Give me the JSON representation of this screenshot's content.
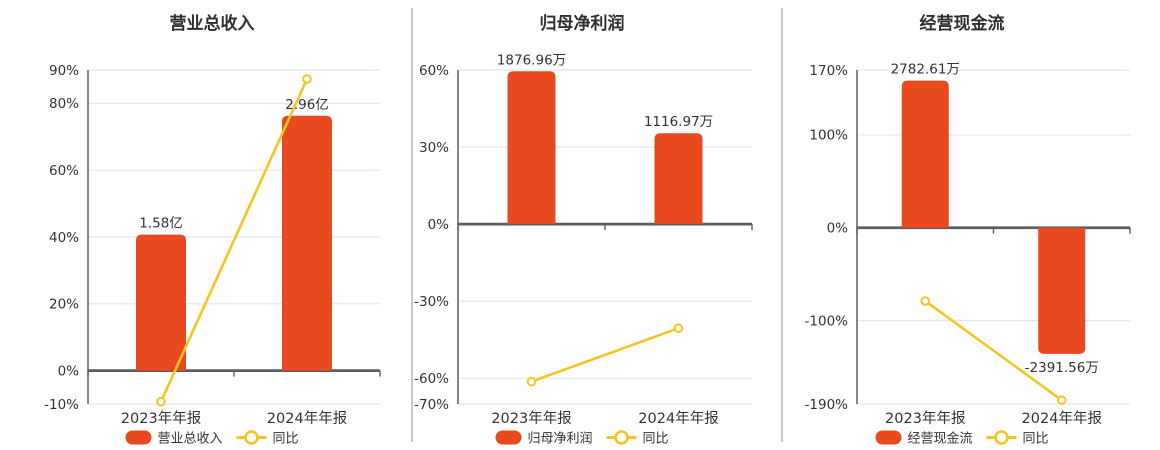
{
  "colors": {
    "bar": "#e8491f",
    "line": "#f6c51f",
    "grid": "#e2e7f1",
    "axis": "#5b5d64",
    "text": "#333333",
    "divider": "#c8c8c8",
    "background": "#ffffff"
  },
  "chart_data": [
    {
      "type": "bar+line",
      "title": "营业总收入",
      "categories": [
        "2023年年报",
        "2024年年报"
      ],
      "ylim": [
        -10,
        90
      ],
      "yticks": [
        90,
        80,
        60,
        40,
        20,
        0,
        -10
      ],
      "ytick_suffix": "%",
      "grid": true,
      "legend_position": "bottom",
      "series": [
        {
          "name": "营业总收入",
          "type": "bar",
          "labels": [
            "1.58亿",
            "2.96亿"
          ],
          "axis_values": [
            40.7,
            76.3
          ]
        },
        {
          "name": "同比",
          "type": "line",
          "axis_values": [
            -9.3,
            87.3
          ]
        }
      ]
    },
    {
      "type": "bar+line",
      "title": "归母净利润",
      "categories": [
        "2023年年报",
        "2024年年报"
      ],
      "ylim": [
        -70,
        60
      ],
      "yticks": [
        60,
        30,
        0,
        -30,
        -60,
        -70
      ],
      "ytick_suffix": "%",
      "grid": true,
      "legend_position": "bottom",
      "series": [
        {
          "name": "归母净利润",
          "type": "bar",
          "labels": [
            "1876.96万",
            "1116.97万"
          ],
          "axis_values": [
            59.5,
            35.4
          ]
        },
        {
          "name": "同比",
          "type": "line",
          "axis_values": [
            -61.3,
            -40.5
          ]
        }
      ]
    },
    {
      "type": "bar+line",
      "title": "经营现金流",
      "categories": [
        "2023年年报",
        "2024年年报"
      ],
      "ylim": [
        -190,
        170
      ],
      "yticks": [
        170,
        100,
        0,
        -100,
        -190
      ],
      "ytick_suffix": "%",
      "grid": true,
      "legend_position": "bottom",
      "series": [
        {
          "name": "经营现金流",
          "type": "bar",
          "labels": [
            "2782.61万",
            "-2391.56万"
          ],
          "axis_values": [
            158.5,
            -136.0
          ]
        },
        {
          "name": "同比",
          "type": "line",
          "axis_values": [
            -79.0,
            -185.9
          ]
        }
      ]
    }
  ]
}
